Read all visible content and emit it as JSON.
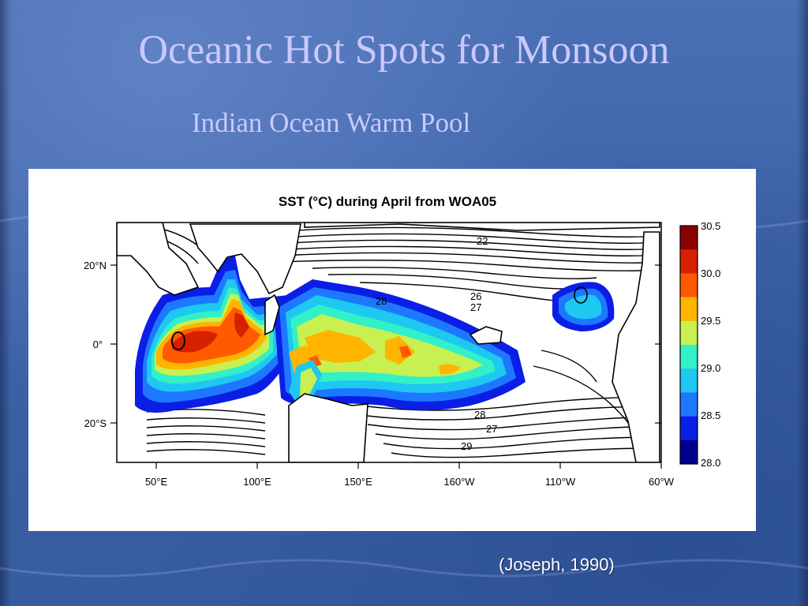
{
  "slide": {
    "title": "Oceanic Hot Spots for Monsoon",
    "subtitle": "Indian Ocean Warm Pool",
    "citation": "(Joseph, 1990)"
  },
  "map": {
    "title": "SST (°C) during April from WOA05",
    "lon_labels": [
      "50°E",
      "100°E",
      "150°E",
      "160°W",
      "110°W",
      "60°W"
    ],
    "lat_labels": [
      "20°N",
      "0°",
      "20°S"
    ],
    "contour_labels": [
      "22",
      "26",
      "27",
      "28",
      "28",
      "27",
      "29"
    ],
    "colorbar": {
      "levels": [
        "30.5",
        "30.0",
        "29.5",
        "29.0",
        "28.5",
        "28.0"
      ],
      "colors": [
        "#8b0000",
        "#d62000",
        "#ff5a00",
        "#ffb400",
        "#c8f050",
        "#32f0c8",
        "#1ec8f0",
        "#1e78ff",
        "#0a1ee6",
        "#00008c"
      ]
    }
  }
}
